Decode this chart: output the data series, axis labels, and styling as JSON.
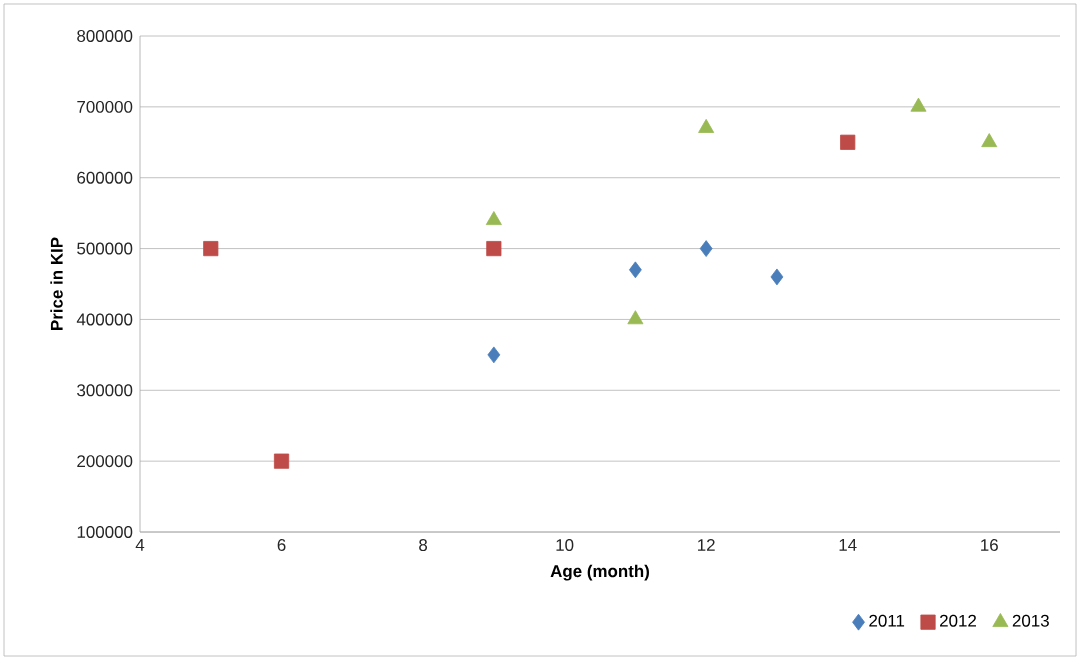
{
  "chart_data": {
    "type": "scatter",
    "xlabel": "Age (month)",
    "ylabel": "Price in KIP",
    "xlim": [
      4,
      17
    ],
    "xticks": [
      4,
      6,
      8,
      10,
      12,
      14,
      16
    ],
    "ylim": [
      100000,
      800000
    ],
    "yticks": [
      100000,
      200000,
      300000,
      400000,
      500000,
      600000,
      700000,
      800000
    ],
    "grid": "y",
    "legend": "bottom right",
    "series": [
      {
        "name": "2011",
        "color": "#4a7ebb",
        "marker": "diamond",
        "x": [
          9,
          11,
          12,
          13
        ],
        "values": [
          350000,
          470000,
          500000,
          460000
        ]
      },
      {
        "name": "2012",
        "color": "#be4b48",
        "marker": "square",
        "x": [
          5,
          6,
          9,
          14
        ],
        "values": [
          500000,
          200000,
          500000,
          650000
        ]
      },
      {
        "name": "2013",
        "color": "#98b954",
        "marker": "triangle",
        "x": [
          9,
          11,
          12,
          15,
          16
        ],
        "values": [
          540000,
          400000,
          670000,
          700000,
          650000
        ]
      }
    ]
  }
}
